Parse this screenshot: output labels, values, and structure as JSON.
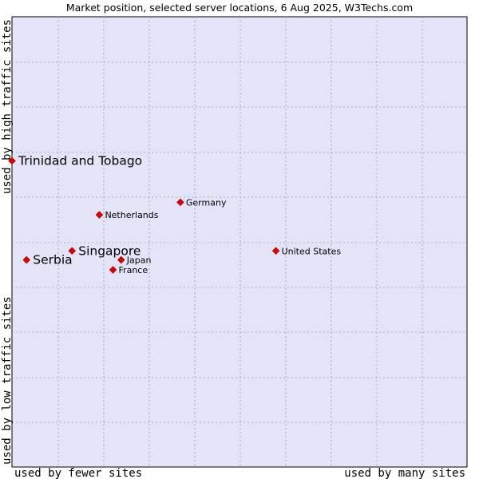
{
  "chart_data": {
    "type": "scatter",
    "title": "Market position, selected server locations, 6 Aug 2025, W3Techs.com",
    "xlabel_low": "used by fewer sites",
    "xlabel_high": "used by many sites",
    "ylabel_low": "used by low traffic sites",
    "ylabel_high": "used by high traffic sites",
    "grid": true,
    "colors": {
      "plot_bg": "#e4e4f8",
      "grid": "#9a9ab0",
      "point": "#e00000",
      "point_border": "#b00000"
    },
    "points": [
      {
        "name": "Trinidad and Tobago",
        "x": 0.0,
        "y": 0.68,
        "emphasis": true
      },
      {
        "name": "Serbia",
        "x": 0.032,
        "y": 0.46,
        "emphasis": true
      },
      {
        "name": "Singapore",
        "x": 0.132,
        "y": 0.48,
        "emphasis": true
      },
      {
        "name": "Netherlands",
        "x": 0.192,
        "y": 0.56,
        "emphasis": false
      },
      {
        "name": "Germany",
        "x": 0.37,
        "y": 0.588,
        "emphasis": false
      },
      {
        "name": "Japan",
        "x": 0.24,
        "y": 0.46,
        "emphasis": false
      },
      {
        "name": "France",
        "x": 0.222,
        "y": 0.438,
        "emphasis": false
      },
      {
        "name": "United States",
        "x": 0.58,
        "y": 0.48,
        "emphasis": false
      }
    ]
  }
}
